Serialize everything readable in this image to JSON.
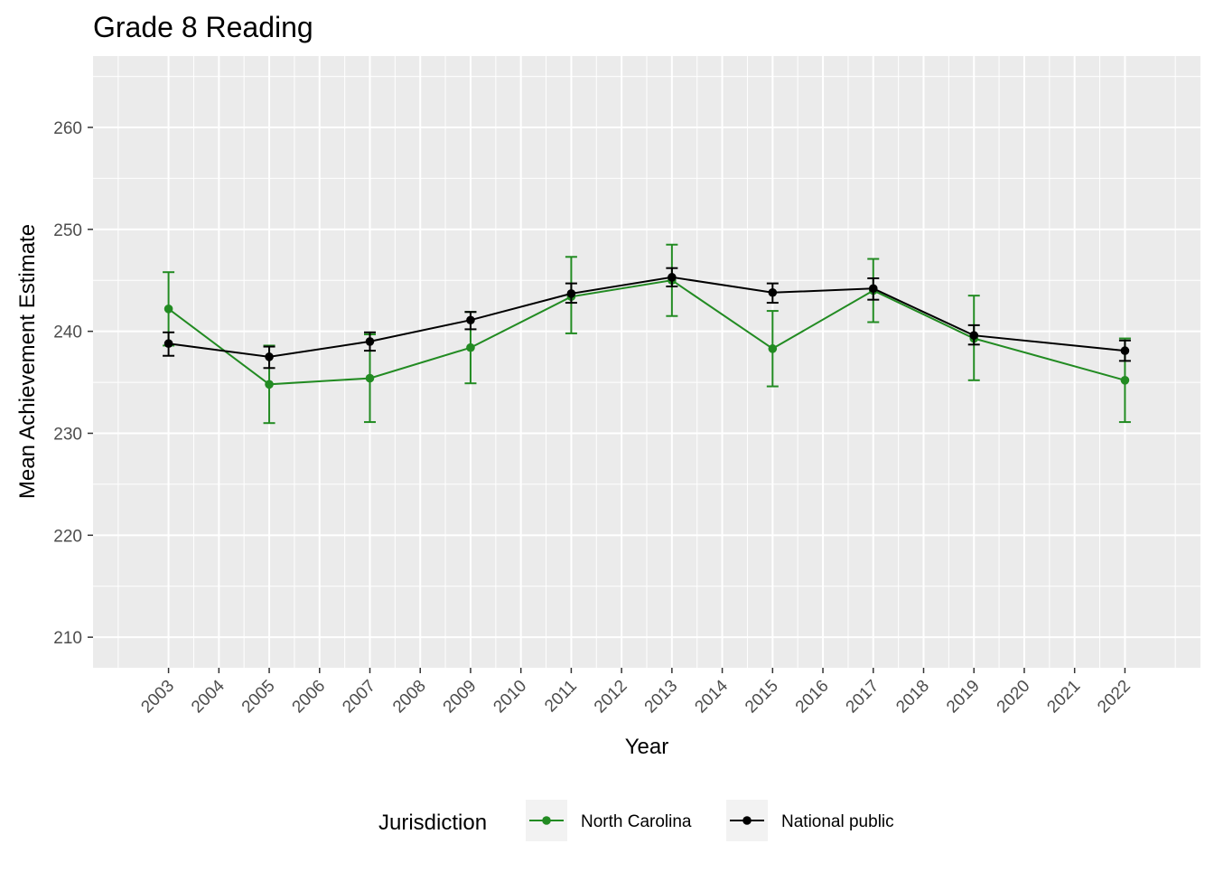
{
  "chart_data": {
    "type": "line",
    "title": "Grade 8 Reading",
    "xlabel": "Year",
    "ylabel": "Mean Achievement Estimate",
    "x_ticks": [
      "2003",
      "2004",
      "2005",
      "2006",
      "2007",
      "2008",
      "2009",
      "2010",
      "2011",
      "2012",
      "2013",
      "2014",
      "2015",
      "2016",
      "2017",
      "2018",
      "2019",
      "2020",
      "2021",
      "2022"
    ],
    "y_ticks": [
      210,
      220,
      230,
      240,
      250,
      260
    ],
    "ylim": [
      207,
      267
    ],
    "grid": true,
    "legend": {
      "title": "Jurisdiction",
      "position": "bottom"
    },
    "series": [
      {
        "name": "North Carolina",
        "color": "#228B22",
        "points": [
          {
            "x": "2003",
            "y": 242.2,
            "lo": 238.6,
            "hi": 245.8
          },
          {
            "x": "2005",
            "y": 234.8,
            "lo": 231.0,
            "hi": 238.6
          },
          {
            "x": "2007",
            "y": 235.4,
            "lo": 231.1,
            "hi": 239.7
          },
          {
            "x": "2009",
            "y": 238.4,
            "lo": 234.9,
            "hi": 241.9
          },
          {
            "x": "2011",
            "y": 243.4,
            "lo": 239.8,
            "hi": 247.3
          },
          {
            "x": "2013",
            "y": 245.0,
            "lo": 241.5,
            "hi": 248.5
          },
          {
            "x": "2015",
            "y": 238.3,
            "lo": 234.6,
            "hi": 242.0
          },
          {
            "x": "2017",
            "y": 244.0,
            "lo": 240.9,
            "hi": 247.1
          },
          {
            "x": "2019",
            "y": 239.3,
            "lo": 235.2,
            "hi": 243.5
          },
          {
            "x": "2022",
            "y": 235.2,
            "lo": 231.1,
            "hi": 239.3
          }
        ]
      },
      {
        "name": "National public",
        "color": "#000000",
        "points": [
          {
            "x": "2003",
            "y": 238.8,
            "lo": 237.6,
            "hi": 239.9
          },
          {
            "x": "2005",
            "y": 237.5,
            "lo": 236.4,
            "hi": 238.5
          },
          {
            "x": "2007",
            "y": 239.0,
            "lo": 238.1,
            "hi": 239.9
          },
          {
            "x": "2009",
            "y": 241.1,
            "lo": 240.2,
            "hi": 241.9
          },
          {
            "x": "2011",
            "y": 243.7,
            "lo": 242.8,
            "hi": 244.7
          },
          {
            "x": "2013",
            "y": 245.3,
            "lo": 244.4,
            "hi": 246.2
          },
          {
            "x": "2015",
            "y": 243.8,
            "lo": 242.8,
            "hi": 244.7
          },
          {
            "x": "2017",
            "y": 244.2,
            "lo": 243.1,
            "hi": 245.2
          },
          {
            "x": "2019",
            "y": 239.6,
            "lo": 238.7,
            "hi": 240.6
          },
          {
            "x": "2022",
            "y": 238.1,
            "lo": 237.1,
            "hi": 239.1
          }
        ]
      }
    ]
  }
}
